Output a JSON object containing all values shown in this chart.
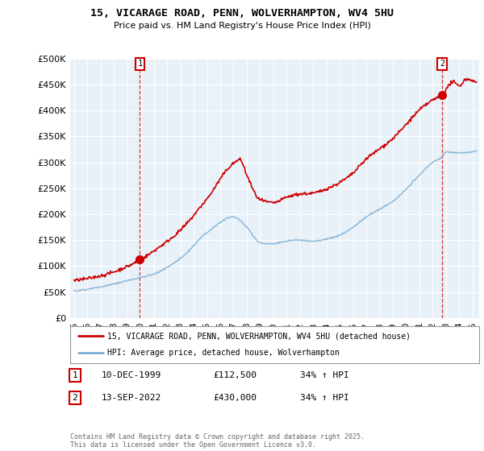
{
  "title": "15, VICARAGE ROAD, PENN, WOLVERHAMPTON, WV4 5HU",
  "subtitle": "Price paid vs. HM Land Registry's House Price Index (HPI)",
  "ylabel_ticks": [
    "£0",
    "£50K",
    "£100K",
    "£150K",
    "£200K",
    "£250K",
    "£300K",
    "£350K",
    "£400K",
    "£450K",
    "£500K"
  ],
  "ytick_values": [
    0,
    50000,
    100000,
    150000,
    200000,
    250000,
    300000,
    350000,
    400000,
    450000,
    500000
  ],
  "ylim": [
    0,
    500000
  ],
  "xlim_start": 1994.7,
  "xlim_end": 2025.5,
  "sale1_year": 1999.95,
  "sale1_price": 112500,
  "sale2_year": 2022.7,
  "sale2_price": 430000,
  "red_color": "#cc0000",
  "blue_color": "#7bafd4",
  "legend_label_red": "15, VICARAGE ROAD, PENN, WOLVERHAMPTON, WV4 5HU (detached house)",
  "legend_label_blue": "HPI: Average price, detached house, Wolverhampton",
  "footnote": "Contains HM Land Registry data © Crown copyright and database right 2025.\nThis data is licensed under the Open Government Licence v3.0.",
  "table_row1": [
    "1",
    "10-DEC-1999",
    "£112,500",
    "34% ↑ HPI"
  ],
  "table_row2": [
    "2",
    "13-SEP-2022",
    "£430,000",
    "34% ↑ HPI"
  ],
  "bg_color": "#ffffff",
  "plot_bg_color": "#e8f0f8",
  "grid_color": "#ffffff"
}
